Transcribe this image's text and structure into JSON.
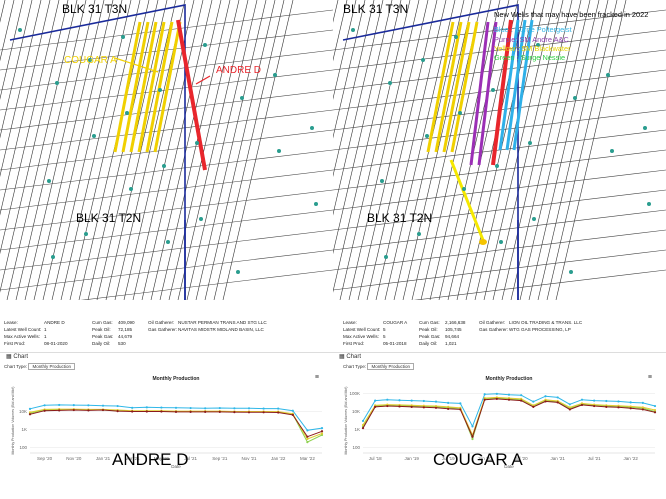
{
  "maps": {
    "left": {
      "top_label": "BLK 31 T3N",
      "bottom_label": "BLK 31 T2N",
      "cougar_label": "COUGAR A",
      "andre_label": "ANDRE D"
    },
    "right": {
      "top_label": "BLK 31 T3N",
      "bottom_label": "BLK 31 T2N",
      "legend": {
        "heading": "New Wells that may have been fracked in 2022",
        "items": [
          {
            "text": "Blue : Surge Poltergeist",
            "color": "#33b5e5"
          },
          {
            "text": "Purple:  SM Andre A&C",
            "color": "#8e44ad"
          },
          {
            "text": "Yellow :  SM Blackwater",
            "color": "#e6d200"
          },
          {
            "text": "Green : Surge Nessie",
            "color": "#2ecc40"
          }
        ]
      }
    },
    "colors": {
      "yellow": "#f0d000",
      "red": "#e8262c",
      "blue": "#2fb0e8",
      "purple": "#9b2fb5",
      "navy": "#1a2a9a"
    }
  },
  "panels": [
    {
      "lease_label": "Lease:",
      "lease": "ANDRE D",
      "wc_label": "Latest Well Count:",
      "wc": "1",
      "maw_label": "Max Active Wells:",
      "maw": "1",
      "fp_label": "First Prod:",
      "fp": "08-01-2020",
      "cg_label": "Cum Gas:",
      "cg": "409,090",
      "po_label": "Peak Oil:",
      "po": "72,185",
      "pg_label": "Peak Gas:",
      "pg": "44,679",
      "do_label": "Daily Oil:",
      "do": "530",
      "og_label": "Oil Gatherer:",
      "og": "NUSTAR PERMIAN TRANS AND STG LLC",
      "gg_label": "Gas Gatherer:",
      "gg": "NAVITAS MIDSTR MIDLAND BASIN, LLC",
      "chart_tab": "Chart",
      "chart_type_label": "Chart Type:",
      "chart_type_value": "Monthly Production",
      "big_label": "ANDRE D"
    },
    {
      "lease_label": "Lease:",
      "lease": "COUGAR A",
      "wc_label": "Latest Well Count:",
      "wc": "5",
      "maw_label": "Max Active Wells:",
      "maw": "5",
      "fp_label": "First Prod:",
      "fp": "05-01-2018",
      "cg_label": "Cum Gas:",
      "cg": "2,166,638",
      "po_label": "Peak Oil:",
      "po": "105,745",
      "pg_label": "Peak Gas:",
      "pg": "94,664",
      "do_label": "Daily Oil:",
      "do": "1,021",
      "og_label": "Oil Gatherer:",
      "og": "LION OIL TRADING & TRANS. LLC",
      "gg_label": "Gas Gatherer:",
      "gg": "WTG GAS PROCESSING, LP",
      "chart_tab": "Chart",
      "chart_type_label": "Chart Type:",
      "chart_type_value": "Monthly Production",
      "big_label": "COUGAR A"
    }
  ],
  "chart_data": [
    {
      "type": "line",
      "title": "Monthly Production",
      "xlabel": "Date",
      "ylabel": "Monthly Production Volumes (Bbl and Mcf)",
      "yscale": "log",
      "y_ticks": [
        "10K",
        "1K",
        "100"
      ],
      "categories": [
        "Aug '20",
        "Sep '20",
        "Oct '20",
        "Nov '20",
        "Dec '20",
        "Jan '21",
        "Feb '21",
        "Mar '21",
        "Apr '21",
        "May '21",
        "Jun '21",
        "Jul '21",
        "Aug '21",
        "Sep '21",
        "Oct '21",
        "Nov '21",
        "Dec '21",
        "Jan '22",
        "Feb '22",
        "Mar '22",
        "Apr '22"
      ],
      "x_tick_labels": [
        "Sep '20",
        "Nov '20",
        "Jan '21",
        "Mar '21",
        "May '21",
        "Jul '21",
        "Sep '21",
        "Nov '21",
        "Jan '22",
        "Mar '22"
      ],
      "series": [
        {
          "color": "#2fb7e8",
          "values": [
            14000,
            22000,
            23000,
            22500,
            22000,
            21000,
            20000,
            16000,
            17000,
            16500,
            16000,
            15500,
            15000,
            15500,
            15000,
            15000,
            14500,
            14500,
            11000,
            900,
            1200
          ]
        },
        {
          "color": "#8fd14f",
          "values": [
            8000,
            12000,
            12500,
            12500,
            12000,
            12000,
            11000,
            10500,
            10500,
            10500,
            10000,
            10000,
            10000,
            10000,
            9800,
            9500,
            9500,
            9300,
            7000,
            200,
            500
          ]
        },
        {
          "color": "#e2cd32",
          "values": [
            9000,
            13000,
            13500,
            13500,
            13000,
            13000,
            12000,
            11000,
            11000,
            11000,
            10500,
            10500,
            10500,
            10500,
            10000,
            10000,
            10000,
            9800,
            7500,
            300,
            600
          ]
        },
        {
          "color": "#8b1a1a",
          "values": [
            7000,
            11000,
            11500,
            12000,
            11500,
            12000,
            10500,
            10000,
            10000,
            10000,
            9500,
            9500,
            9500,
            9500,
            9200,
            9000,
            9000,
            8800,
            6500,
            400,
            800
          ]
        }
      ]
    },
    {
      "type": "line",
      "title": "Monthly Production",
      "xlabel": "Date",
      "ylabel": "Monthly Production Volumes (Bbl and Mcf)",
      "yscale": "log",
      "y_ticks": [
        "100K",
        "10K",
        "1K",
        "100"
      ],
      "categories": [
        "May '18",
        "Jul '18",
        "Sep '18",
        "Nov '18",
        "Jan '19",
        "Mar '19",
        "May '19",
        "Jul '19",
        "Sep '19",
        "Nov '19",
        "Jan '20",
        "Mar '20",
        "May '20",
        "Jul '20",
        "Sep '20",
        "Nov '20",
        "Jan '21",
        "Mar '21",
        "May '21",
        "Jul '21",
        "Sep '21",
        "Nov '21",
        "Jan '22",
        "Mar '22",
        "Apr '22"
      ],
      "x_tick_labels": [
        "Jul '18",
        "Jan '19",
        "Jul '19",
        "Jan '20",
        "Jul '20",
        "Jan '21",
        "Jul '21",
        "Jan '22"
      ],
      "series": [
        {
          "color": "#2fb7e8",
          "values": [
            3000,
            40000,
            45000,
            42000,
            40000,
            38000,
            35000,
            30000,
            28000,
            1500,
            90000,
            95000,
            85000,
            80000,
            35000,
            70000,
            60000,
            25000,
            45000,
            40000,
            38000,
            36000,
            32000,
            30000,
            20000
          ]
        },
        {
          "color": "#8fd14f",
          "values": [
            1500,
            20000,
            22000,
            21000,
            20000,
            19000,
            18000,
            16000,
            15000,
            300,
            50000,
            55000,
            50000,
            45000,
            20000,
            40000,
            35000,
            15000,
            25000,
            22000,
            20000,
            19000,
            17000,
            15000,
            10000
          ]
        },
        {
          "color": "#e2cd32",
          "values": [
            1800,
            22000,
            24000,
            23000,
            22000,
            21000,
            20000,
            18000,
            16000,
            500,
            55000,
            60000,
            55000,
            50000,
            22000,
            45000,
            38000,
            17000,
            28000,
            24000,
            22000,
            21000,
            19000,
            17000,
            12000
          ]
        },
        {
          "color": "#8b1a1a",
          "values": [
            1200,
            18000,
            20000,
            19000,
            18000,
            17000,
            16000,
            14000,
            13000,
            400,
            45000,
            50000,
            45000,
            40000,
            18000,
            36000,
            32000,
            13000,
            23000,
            20000,
            18000,
            17000,
            15000,
            13000,
            9000
          ]
        }
      ]
    }
  ]
}
